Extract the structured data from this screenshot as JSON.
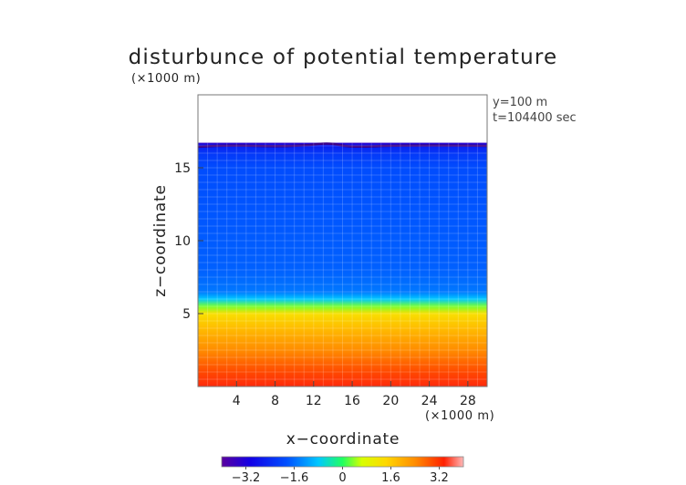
{
  "chart_data": {
    "type": "heatmap",
    "title": "disturbunce of potential temperature",
    "y_unit_label": "(×1000 m)",
    "x_unit_label": "(×1000 m)",
    "xlabel": "x−coordinate",
    "ylabel": "z−coordinate",
    "annotations": [
      "y=100  m",
      "t=104400 sec"
    ],
    "xlim": [
      0,
      30
    ],
    "ylim": [
      0,
      20
    ],
    "x_ticks": [
      {
        "value": 4,
        "label": "4"
      },
      {
        "value": 8,
        "label": "8"
      },
      {
        "value": 12,
        "label": "12"
      },
      {
        "value": 16,
        "label": "16"
      },
      {
        "value": 20,
        "label": "20"
      },
      {
        "value": 24,
        "label": "24"
      },
      {
        "value": 28,
        "label": "28"
      }
    ],
    "y_ticks": [
      {
        "value": 5,
        "label": "5"
      },
      {
        "value": 10,
        "label": "10"
      },
      {
        "value": 15,
        "label": "15"
      }
    ],
    "colorbar": {
      "range": [
        -4,
        4
      ],
      "ticks": [
        {
          "value": -3.2,
          "label": "−3.2"
        },
        {
          "value": -1.6,
          "label": "−1.6"
        },
        {
          "value": 0,
          "label": "0"
        },
        {
          "value": 1.6,
          "label": "1.6"
        },
        {
          "value": 3.2,
          "label": "3.2"
        }
      ]
    },
    "field_profile": [
      {
        "z": 0,
        "value": 3.4
      },
      {
        "z": 1,
        "value": 3.0
      },
      {
        "z": 2.5,
        "value": 2.4
      },
      {
        "z": 4,
        "value": 1.8
      },
      {
        "z": 5,
        "value": 1.3
      },
      {
        "z": 5.5,
        "value": 0.3
      },
      {
        "z": 6,
        "value": -0.8
      },
      {
        "z": 6.5,
        "value": -1.5
      },
      {
        "z": 8,
        "value": -1.7
      },
      {
        "z": 12,
        "value": -1.8
      },
      {
        "z": 15,
        "value": -1.9
      },
      {
        "z": 16,
        "value": -2.2
      },
      {
        "z": 16.5,
        "value": -2.6
      },
      {
        "z": 16.7,
        "value": -3.4
      }
    ],
    "data_top_z": 16.7,
    "grid": true
  }
}
